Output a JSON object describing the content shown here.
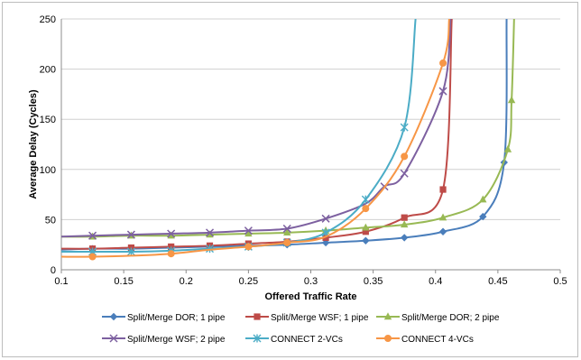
{
  "chart_data": {
    "type": "line",
    "title": "",
    "xlabel": "Offered Traffic Rate",
    "ylabel": "Average Delay (Cycles)",
    "xlim": [
      0.1,
      0.5
    ],
    "ylim": [
      0,
      250
    ],
    "xticks": [
      "0.1",
      "0.15",
      "0.2",
      "0.25",
      "0.3",
      "0.35",
      "0.4",
      "0.45",
      "0.5"
    ],
    "yticks": [
      "0",
      "50",
      "100",
      "150",
      "200",
      "250"
    ],
    "grid": "horizontal",
    "legend_position": "bottom",
    "series": [
      {
        "name": "Split/Merge DOR; 1 pipe",
        "color": "#4A7EBB",
        "marker": "diamond",
        "x": [
          0.1,
          0.125,
          0.156,
          0.188,
          0.219,
          0.25,
          0.281,
          0.312,
          0.344,
          0.375,
          0.406,
          0.438,
          0.455,
          0.457
        ],
        "y": [
          20,
          21,
          21,
          22,
          23,
          24,
          25,
          27,
          29,
          32,
          38,
          53,
          107,
          250
        ],
        "markers_at": [
          0.125,
          0.156,
          0.188,
          0.219,
          0.25,
          0.281,
          0.312,
          0.344,
          0.375,
          0.406,
          0.438,
          0.455
        ]
      },
      {
        "name": "Split/Merge WSF; 1 pipe",
        "color": "#BE4B48",
        "marker": "square",
        "x": [
          0.1,
          0.125,
          0.156,
          0.188,
          0.219,
          0.25,
          0.281,
          0.312,
          0.344,
          0.375,
          0.406,
          0.413
        ],
        "y": [
          21,
          21,
          22,
          23,
          24,
          26,
          28,
          32,
          38,
          52,
          80,
          250
        ],
        "markers_at": [
          0.125,
          0.156,
          0.188,
          0.219,
          0.25,
          0.281,
          0.312,
          0.344,
          0.375,
          0.406
        ]
      },
      {
        "name": "Split/Merge DOR; 2 pipe",
        "color": "#98B954",
        "marker": "triangle",
        "x": [
          0.1,
          0.125,
          0.156,
          0.188,
          0.219,
          0.25,
          0.281,
          0.312,
          0.344,
          0.375,
          0.406,
          0.438,
          0.458,
          0.461,
          0.463
        ],
        "y": [
          33,
          33,
          34,
          34,
          35,
          36,
          37,
          39,
          42,
          45,
          52,
          70,
          120,
          169,
          250
        ],
        "markers_at": [
          0.125,
          0.156,
          0.188,
          0.219,
          0.25,
          0.281,
          0.312,
          0.344,
          0.375,
          0.406,
          0.438,
          0.458,
          0.461
        ]
      },
      {
        "name": "Split/Merge WSF; 2 pipe",
        "color": "#7D60A0",
        "marker": "x",
        "x": [
          0.1,
          0.125,
          0.156,
          0.188,
          0.219,
          0.25,
          0.281,
          0.312,
          0.344,
          0.359,
          0.375,
          0.406,
          0.412
        ],
        "y": [
          33,
          34,
          35,
          36,
          37,
          39,
          41,
          51,
          66,
          83,
          96,
          178,
          250
        ],
        "markers_at": [
          0.125,
          0.156,
          0.188,
          0.219,
          0.25,
          0.281,
          0.312,
          0.359,
          0.375,
          0.406
        ]
      },
      {
        "name": "CONNECT 2-VCs",
        "color": "#4BACC6",
        "marker": "star",
        "x": [
          0.1,
          0.125,
          0.156,
          0.188,
          0.219,
          0.25,
          0.281,
          0.312,
          0.344,
          0.375,
          0.384
        ],
        "y": [
          18,
          18,
          18,
          19,
          21,
          23,
          27,
          37,
          70,
          142,
          250
        ],
        "markers_at": [
          0.125,
          0.156,
          0.188,
          0.219,
          0.25,
          0.281,
          0.312,
          0.344,
          0.375
        ]
      },
      {
        "name": "CONNECT 4-VCs",
        "color": "#F79646",
        "marker": "circle",
        "x": [
          0.1,
          0.125,
          0.156,
          0.188,
          0.219,
          0.25,
          0.281,
          0.312,
          0.344,
          0.375,
          0.406,
          0.411
        ],
        "y": [
          13,
          13,
          14,
          16,
          20,
          23,
          27,
          33,
          61,
          113,
          206,
          250
        ],
        "markers_at": [
          0.125,
          0.188,
          0.25,
          0.281,
          0.344,
          0.375,
          0.406
        ]
      }
    ]
  }
}
